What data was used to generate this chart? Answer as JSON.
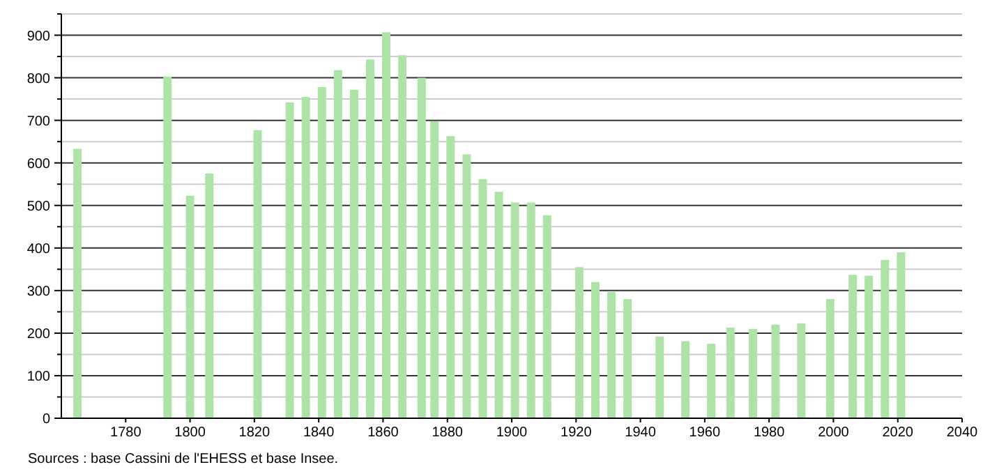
{
  "chart_data": {
    "type": "bar",
    "x": [
      1765,
      1793,
      1800,
      1806,
      1821,
      1831,
      1836,
      1841,
      1846,
      1851,
      1856,
      1861,
      1866,
      1872,
      1876,
      1881,
      1886,
      1891,
      1896,
      1901,
      1906,
      1911,
      1921,
      1926,
      1931,
      1936,
      1946,
      1954,
      1962,
      1968,
      1975,
      1982,
      1990,
      1999,
      2006,
      2011,
      2016,
      2021
    ],
    "values": [
      633,
      803,
      523,
      575,
      677,
      742,
      755,
      778,
      818,
      772,
      843,
      907,
      853,
      800,
      698,
      663,
      620,
      562,
      532,
      507,
      507,
      477,
      355,
      320,
      297,
      280,
      192,
      181,
      175,
      213,
      210,
      220,
      223,
      280,
      337,
      335,
      372,
      390
    ],
    "color": "#aee3a8",
    "xlim": [
      1760,
      2040
    ],
    "xticks": [
      1780,
      1800,
      1820,
      1840,
      1860,
      1880,
      1900,
      1920,
      1940,
      1960,
      1980,
      2000,
      2020,
      2040
    ],
    "ylim": [
      0,
      950
    ],
    "yticks": [
      0,
      {
        "value": 50,
        "label": null
      },
      100,
      {
        "value": 150,
        "label": null
      },
      200,
      {
        "value": 250,
        "label": null
      },
      300,
      {
        "value": 350,
        "label": null
      },
      400,
      {
        "value": 450,
        "label": null
      },
      500,
      {
        "value": 550,
        "label": null
      },
      600,
      {
        "value": 650,
        "label": null
      },
      700,
      {
        "value": 750,
        "label": null
      },
      800,
      {
        "value": 850,
        "label": null
      },
      900,
      {
        "value": 950,
        "label": null
      }
    ],
    "grid": true,
    "annotations": [
      "Sources : base Cassini de l'EHESS et base Insee."
    ]
  }
}
